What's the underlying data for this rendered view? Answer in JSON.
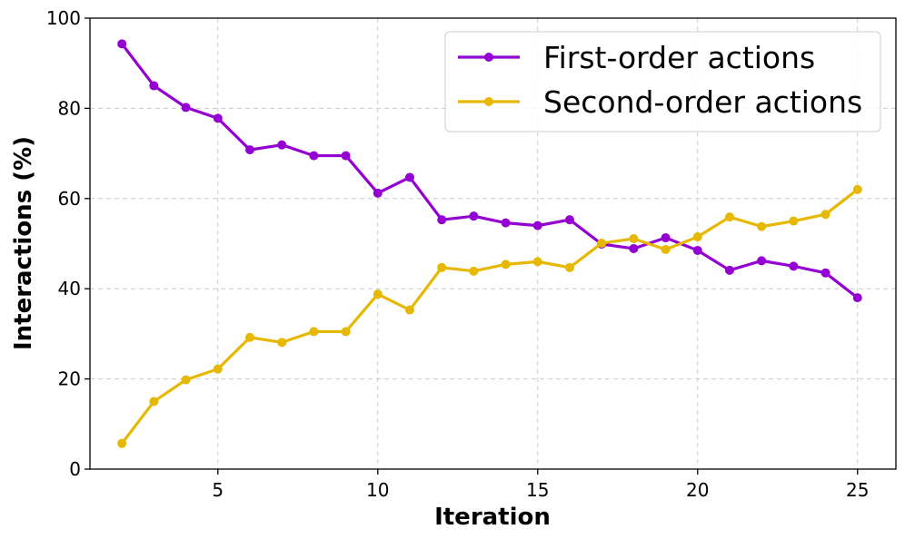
{
  "chart_data": {
    "type": "line",
    "xlabel": "Iteration",
    "ylabel": "Interactions (%)",
    "xlim": [
      1,
      26.2
    ],
    "ylim": [
      0,
      100
    ],
    "xticks": [
      5,
      10,
      15,
      20,
      25
    ],
    "yticks": [
      0,
      20,
      40,
      60,
      80,
      100
    ],
    "grid": true,
    "legend_position": "top-right",
    "x": [
      2,
      3,
      4,
      5,
      6,
      7,
      8,
      9,
      10,
      11,
      12,
      13,
      14,
      15,
      16,
      17,
      18,
      19,
      20,
      21,
      22,
      23,
      24,
      25
    ],
    "series": [
      {
        "name": "First-order actions",
        "color": "#9400d3",
        "values": [
          94.3,
          85.0,
          80.2,
          77.8,
          70.8,
          71.9,
          69.5,
          69.5,
          61.2,
          64.7,
          55.3,
          56.1,
          54.6,
          54.0,
          55.3,
          49.9,
          48.9,
          51.3,
          48.5,
          44.1,
          46.2,
          45.0,
          43.5,
          38.0
        ]
      },
      {
        "name": "Second-order actions",
        "color": "#e6b800",
        "values": [
          5.7,
          15.0,
          19.8,
          22.2,
          29.2,
          28.1,
          30.5,
          30.5,
          38.8,
          35.3,
          44.7,
          43.9,
          45.4,
          46.0,
          44.7,
          50.1,
          51.1,
          48.7,
          51.5,
          55.9,
          53.8,
          55.0,
          56.5,
          62.0
        ]
      }
    ]
  }
}
